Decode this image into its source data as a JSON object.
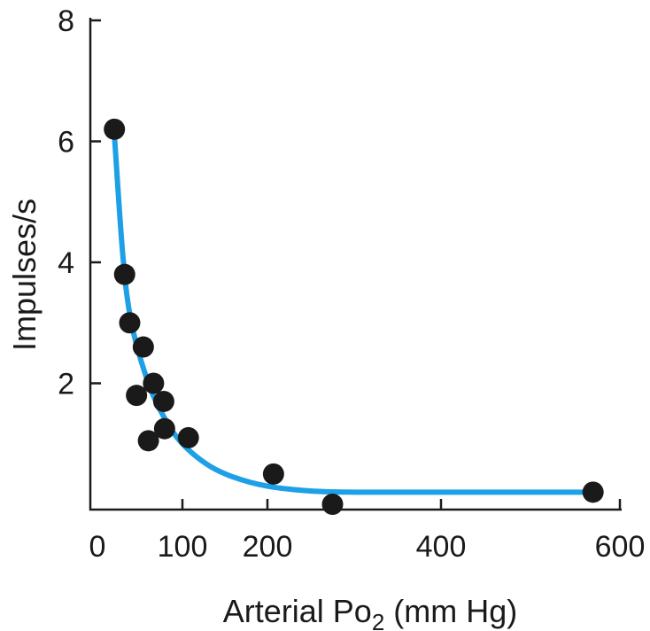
{
  "chart_data": {
    "type": "scatter",
    "title": "",
    "xlabel": "Arterial Po",
    "xlabel_subscript": "2",
    "xlabel_unit": " (mm Hg)",
    "ylabel": "Impulses/s",
    "xlim": [
      0,
      600
    ],
    "ylim": [
      0,
      8
    ],
    "x_ticks": [
      0,
      100,
      200,
      400,
      600
    ],
    "x_tick_labels": [
      "0",
      "100",
      "200",
      "400",
      "600"
    ],
    "y_ticks": [
      2,
      4,
      6,
      8
    ],
    "y_tick_labels": [
      "2",
      "4",
      "6",
      "8"
    ],
    "grid": false,
    "colors": {
      "points": "#1a1a1a",
      "curve": "#1ea0e6",
      "axes": "#1a1a1a"
    },
    "series": [
      {
        "type": "scatter",
        "points": [
          {
            "x": 20,
            "y": 6.2
          },
          {
            "x": 32,
            "y": 3.8
          },
          {
            "x": 38,
            "y": 3.0
          },
          {
            "x": 46,
            "y": 1.8
          },
          {
            "x": 54,
            "y": 2.6
          },
          {
            "x": 60,
            "y": 1.05
          },
          {
            "x": 66,
            "y": 2.0
          },
          {
            "x": 78,
            "y": 1.7
          },
          {
            "x": 79,
            "y": 1.25
          },
          {
            "x": 107,
            "y": 1.1
          },
          {
            "x": 207,
            "y": 0.5
          },
          {
            "x": 275,
            "y": 0.0
          },
          {
            "x": 570,
            "y": 0.2
          }
        ]
      },
      {
        "type": "line",
        "points": [
          {
            "x": 20,
            "y": 6.1
          },
          {
            "x": 30,
            "y": 4.1
          },
          {
            "x": 40,
            "y": 3.0
          },
          {
            "x": 60,
            "y": 2.0
          },
          {
            "x": 80,
            "y": 1.4
          },
          {
            "x": 100,
            "y": 1.0
          },
          {
            "x": 130,
            "y": 0.65
          },
          {
            "x": 160,
            "y": 0.45
          },
          {
            "x": 200,
            "y": 0.3
          },
          {
            "x": 250,
            "y": 0.22
          },
          {
            "x": 300,
            "y": 0.2
          },
          {
            "x": 400,
            "y": 0.2
          },
          {
            "x": 570,
            "y": 0.2
          }
        ]
      }
    ]
  }
}
